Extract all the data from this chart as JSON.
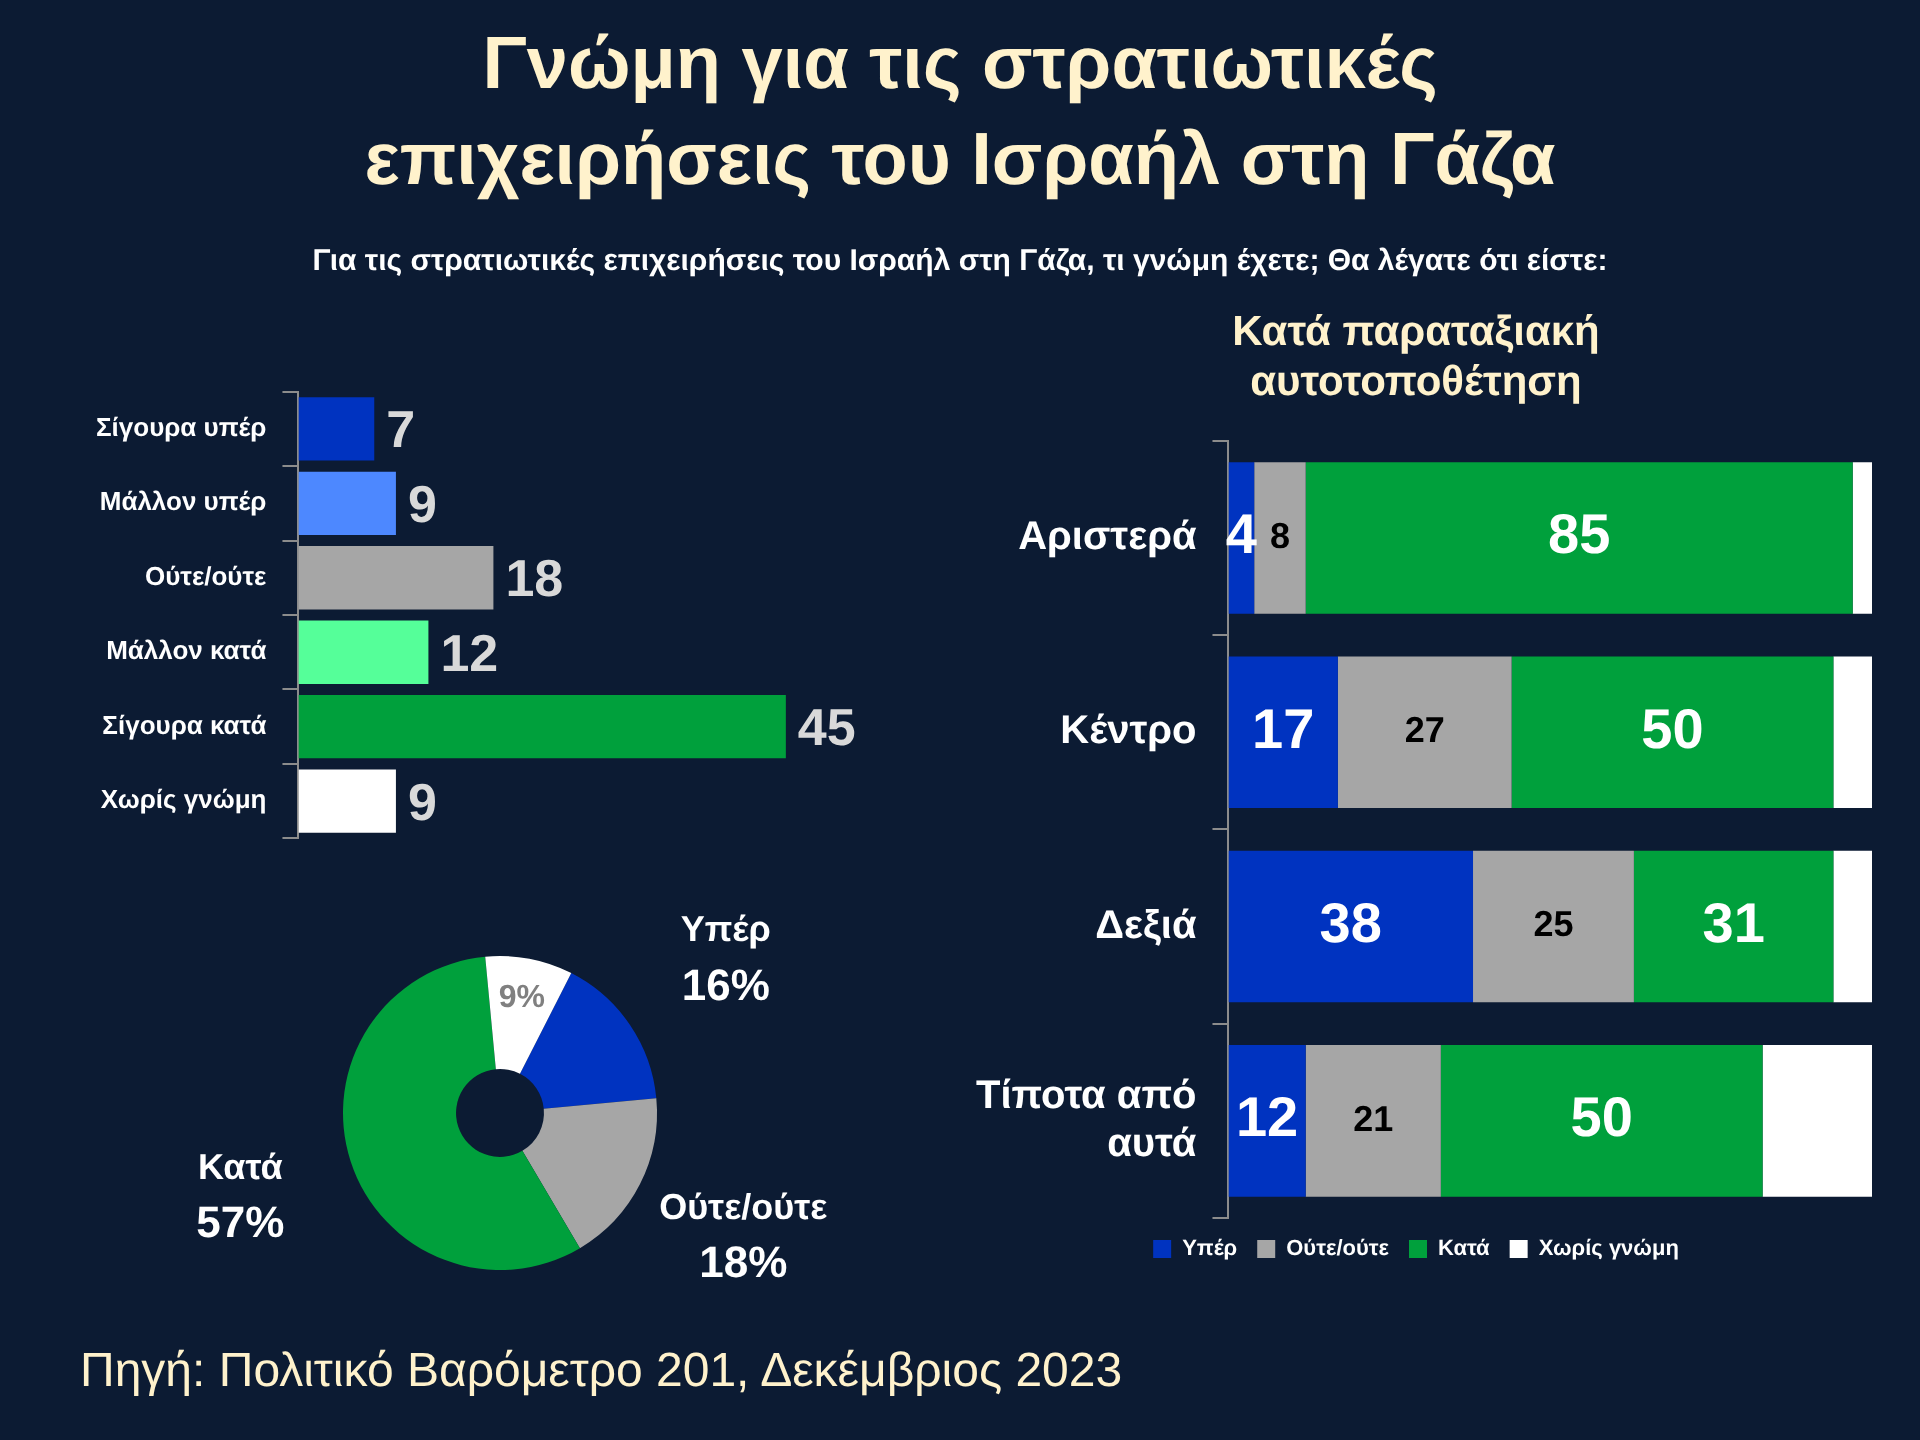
{
  "chart_data": [
    {
      "type": "bar",
      "orientation": "horizontal",
      "title": "Γνώμη για τις στρατιωτικές επιχειρήσεις του Ισραήλ στη Γάζα",
      "subtitle": "Για τις στρατιωτικές επιχειρήσεις του Ισραήλ στη Γάζα, τι γνώμη έχετε; Θα λέγατε ότι είστε:",
      "categories": [
        "Σίγουρα υπέρ",
        "Μάλλον υπέρ",
        "Ούτε/ούτε",
        "Μάλλον κατά",
        "Σίγουρα κατά",
        "Χωρίς γνώμη"
      ],
      "values": [
        7,
        9,
        18,
        12,
        45,
        9
      ],
      "colors": [
        "#0033c0",
        "#4d88ff",
        "#a6a6a6",
        "#55ff99",
        "#00a03c",
        "#ffffff"
      ],
      "data_labels": true,
      "grid": false,
      "legend": false,
      "annotations": [
        "Πηγή: Πολιτικό Βαρόμετρο 201, Δεκέμβριος 2023"
      ]
    },
    {
      "type": "donut",
      "categories": [
        "Υπέρ",
        "Ούτε/ούτε",
        "Κατά",
        null
      ],
      "values": [
        16,
        18,
        57,
        9
      ],
      "value_labels": [
        "16%",
        "18%",
        "57%",
        "9%"
      ],
      "colors": [
        "#0033c0",
        "#a6a6a6",
        "#00a03c",
        "#ffffff"
      ],
      "legend": false
    },
    {
      "type": "bar",
      "orientation": "horizontal",
      "stacked": true,
      "title": "Κατά παραταξιακή αυτοτοποθέτηση",
      "categories": [
        "Αριστερά",
        "Κέντρο",
        "Δεξιά",
        "Τίποτα από αυτά"
      ],
      "grid": false,
      "legend": "bottom",
      "series": [
        {
          "name": "Υπέρ",
          "color": "#0033c0",
          "values": [
            4,
            17,
            38,
            12
          ],
          "value_labels": [
            "4",
            "17",
            "38",
            "12"
          ]
        },
        {
          "name": "Ούτε/ούτε",
          "color": "#a6a6a6",
          "values": [
            8,
            27,
            25,
            21
          ],
          "value_labels": [
            "8",
            "27",
            "25",
            "21"
          ]
        },
        {
          "name": "Κατά",
          "color": "#00a03c",
          "values": [
            85,
            50,
            31,
            50
          ],
          "value_labels": [
            "85",
            "50",
            "31",
            "50"
          ]
        },
        {
          "name": "Χωρίς γνώμη",
          "color": "#ffffff",
          "values": [
            3,
            6,
            6,
            17
          ],
          "value_labels": [
            null,
            null,
            null,
            null
          ]
        }
      ]
    }
  ]
}
